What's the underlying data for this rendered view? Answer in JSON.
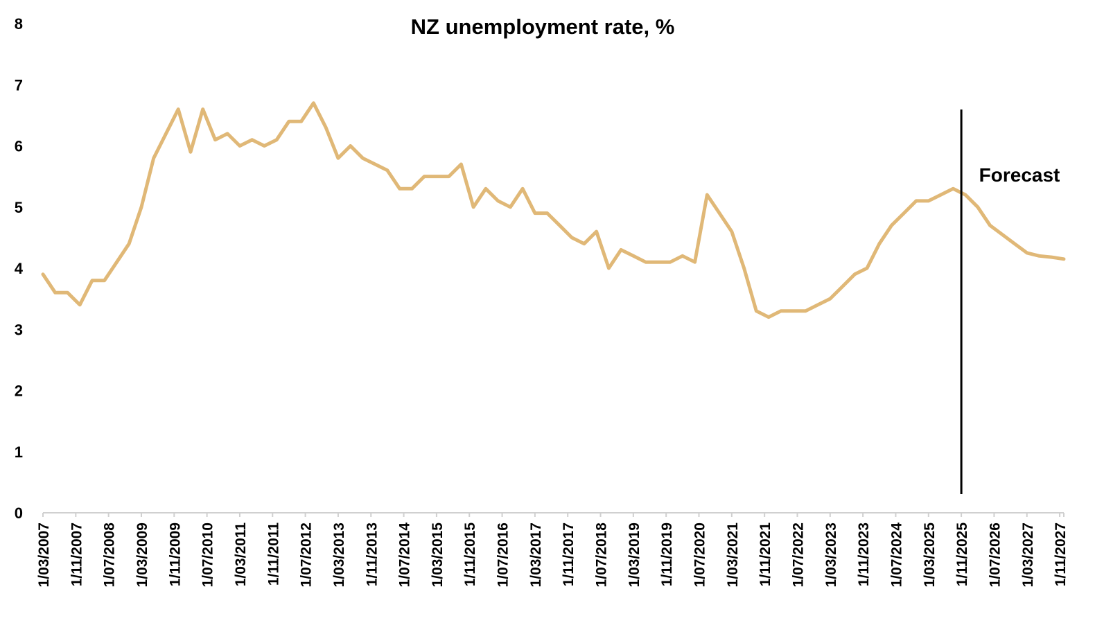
{
  "chart_data": {
    "type": "line",
    "title": "NZ unemployment rate, %",
    "xlabel": "",
    "ylabel": "",
    "ylim": [
      0,
      8
    ],
    "yticks": [
      "0",
      "1",
      "2",
      "3",
      "4",
      "5",
      "6",
      "7",
      "8"
    ],
    "grid": false,
    "legend": "none",
    "x_tick_labels": [
      "1/03/2007",
      "1/11/2007",
      "1/07/2008",
      "1/03/2009",
      "1/11/2009",
      "1/07/2010",
      "1/03/2011",
      "1/11/2011",
      "1/07/2012",
      "1/03/2013",
      "1/11/2013",
      "1/07/2014",
      "1/03/2015",
      "1/11/2015",
      "1/07/2016",
      "1/03/2017",
      "1/11/2017",
      "1/07/2018",
      "1/03/2019",
      "1/11/2019",
      "1/07/2020",
      "1/03/2021",
      "1/11/2021",
      "1/07/2022",
      "1/03/2023",
      "1/11/2023",
      "1/07/2024",
      "1/03/2025",
      "1/11/2025",
      "1/07/2026",
      "1/03/2027",
      "1/11/2027"
    ],
    "series": [
      {
        "color": "#e0b877",
        "x": [
          "2007-03",
          "2007-06",
          "2007-09",
          "2007-12",
          "2008-03",
          "2008-06",
          "2008-09",
          "2008-12",
          "2009-03",
          "2009-06",
          "2009-09",
          "2009-12",
          "2010-03",
          "2010-06",
          "2010-09",
          "2010-12",
          "2011-03",
          "2011-06",
          "2011-09",
          "2011-12",
          "2012-03",
          "2012-06",
          "2012-09",
          "2012-12",
          "2013-03",
          "2013-06",
          "2013-09",
          "2013-12",
          "2014-03",
          "2014-06",
          "2014-09",
          "2014-12",
          "2015-03",
          "2015-06",
          "2015-09",
          "2015-12",
          "2016-03",
          "2016-06",
          "2016-09",
          "2016-12",
          "2017-03",
          "2017-06",
          "2017-09",
          "2017-12",
          "2018-03",
          "2018-06",
          "2018-09",
          "2018-12",
          "2019-03",
          "2019-06",
          "2019-09",
          "2019-12",
          "2020-03",
          "2020-06",
          "2020-09",
          "2020-12",
          "2021-03",
          "2021-06",
          "2021-09",
          "2021-12",
          "2022-03",
          "2022-06",
          "2022-09",
          "2022-12",
          "2023-03",
          "2023-06",
          "2023-09",
          "2023-12",
          "2024-03",
          "2024-06",
          "2024-09",
          "2024-12",
          "2025-03",
          "2025-06",
          "2025-09",
          "2025-12",
          "2026-03",
          "2026-06",
          "2026-09",
          "2026-12",
          "2027-03",
          "2027-06",
          "2027-09",
          "2027-12"
        ],
        "values": [
          3.9,
          3.6,
          3.6,
          3.4,
          3.8,
          3.8,
          4.1,
          4.4,
          5.0,
          5.8,
          6.2,
          6.6,
          5.9,
          6.6,
          6.1,
          6.2,
          6.0,
          6.1,
          6.0,
          6.1,
          6.4,
          6.4,
          6.7,
          6.3,
          5.8,
          6.0,
          5.8,
          5.7,
          5.6,
          5.3,
          5.3,
          5.5,
          5.5,
          5.5,
          5.7,
          5.0,
          5.3,
          5.1,
          5.0,
          5.3,
          4.9,
          4.9,
          4.7,
          4.5,
          4.4,
          4.6,
          4.0,
          4.3,
          4.2,
          4.1,
          4.1,
          4.1,
          4.2,
          4.1,
          5.2,
          4.9,
          4.6,
          4.0,
          3.3,
          3.2,
          3.3,
          3.3,
          3.3,
          3.4,
          3.5,
          3.7,
          3.9,
          4.0,
          4.4,
          4.7,
          4.9,
          5.1,
          5.1,
          5.2,
          5.3,
          5.2,
          5.0,
          4.7,
          4.55,
          4.4,
          4.25,
          4.2,
          4.18,
          4.15
        ]
      }
    ],
    "forecast_marker": {
      "at": "2025-11",
      "label": "Forecast"
    }
  }
}
